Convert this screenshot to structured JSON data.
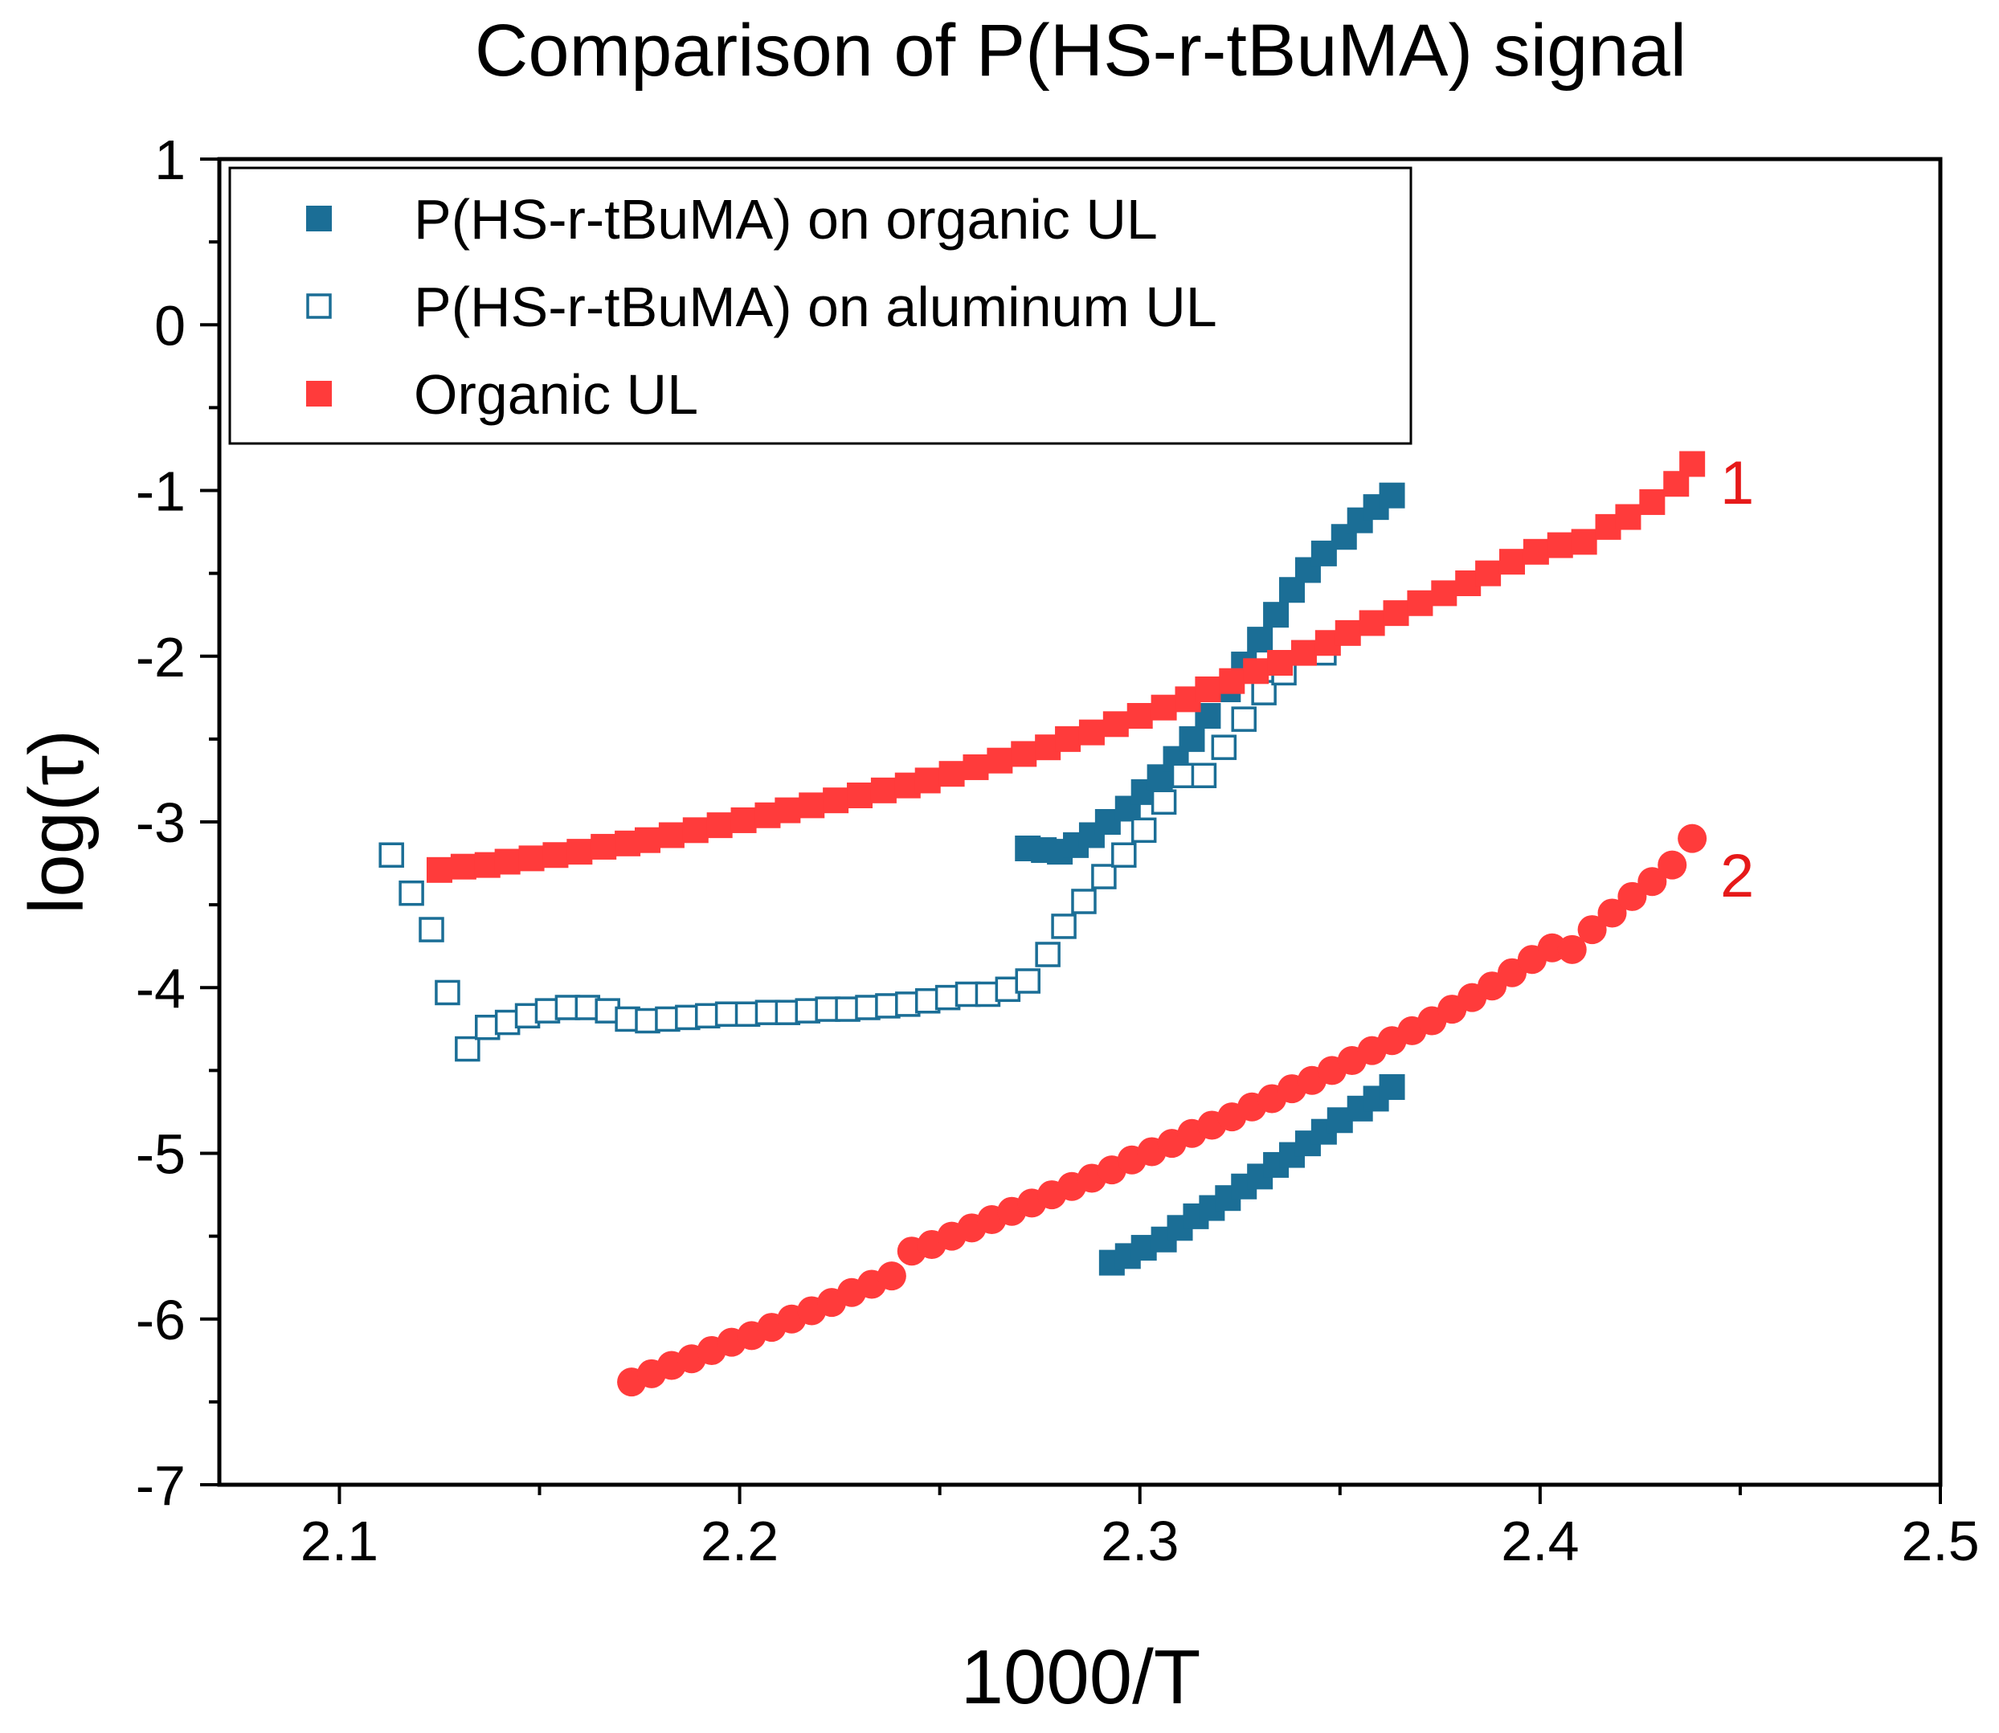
{
  "chart_data": {
    "type": "scatter",
    "title": "Comparison of P(HS-r-tBuMA) signal",
    "xlabel": "1000/T",
    "ylabel": "log(τ)",
    "xlim": [
      2.07,
      2.5
    ],
    "ylim": [
      -7,
      1
    ],
    "x_ticks": [
      2.1,
      2.2,
      2.3,
      2.4,
      2.5
    ],
    "x_tick_labels": [
      "2.1",
      "2.2",
      "2.3",
      "2.4",
      "2.5"
    ],
    "x_minor_step": 0.05,
    "y_ticks": [
      1,
      0,
      -1,
      -2,
      -3,
      -4,
      -5,
      -6,
      -7
    ],
    "y_tick_labels": [
      "1",
      "0",
      "-1",
      "-2",
      "-3",
      "-4",
      "-5",
      "-6",
      "-7"
    ],
    "y_minor_step": 0.5,
    "grid": false,
    "legend_position": "top-left",
    "legend": [
      {
        "label": "P(HS-r-tBuMA) on organic UL",
        "marker": "square-filled",
        "color": "#1b6e96"
      },
      {
        "label": "P(HS-r-tBuMA) on aluminum UL",
        "marker": "square-open",
        "color": "#1b6e96"
      },
      {
        "label": "Organic UL",
        "marker": "square-filled",
        "color": "#ff3b3b"
      }
    ],
    "annotations": [
      {
        "text": "1",
        "x": 2.445,
        "y": -1.08,
        "color": "#e61919"
      },
      {
        "text": "2",
        "x": 2.445,
        "y": -3.45,
        "color": "#e61919"
      }
    ],
    "series": [
      {
        "name": "P(HS-r-tBuMA) on organic UL — process 1",
        "marker": "square-filled",
        "color": "#1b6e96",
        "x": [
          2.272,
          2.276,
          2.28,
          2.284,
          2.288,
          2.292,
          2.297,
          2.301,
          2.305,
          2.309,
          2.313,
          2.317,
          2.322,
          2.326,
          2.33,
          2.334,
          2.338,
          2.342,
          2.346,
          2.351,
          2.355,
          2.359,
          2.363
        ],
        "y": [
          -3.16,
          -3.17,
          -3.18,
          -3.14,
          -3.08,
          -3.0,
          -2.92,
          -2.82,
          -2.73,
          -2.62,
          -2.5,
          -2.36,
          -2.2,
          -2.05,
          -1.9,
          -1.75,
          -1.6,
          -1.48,
          -1.38,
          -1.28,
          -1.18,
          -1.1,
          -1.03
        ]
      },
      {
        "name": "P(HS-r-tBuMA) on organic UL — process 2",
        "marker": "square-filled",
        "color": "#1b6e96",
        "x": [
          2.293,
          2.297,
          2.301,
          2.306,
          2.31,
          2.314,
          2.318,
          2.322,
          2.326,
          2.33,
          2.334,
          2.338,
          2.342,
          2.346,
          2.35,
          2.355,
          2.359,
          2.363
        ],
        "y": [
          -5.66,
          -5.62,
          -5.57,
          -5.52,
          -5.45,
          -5.38,
          -5.33,
          -5.27,
          -5.2,
          -5.14,
          -5.07,
          -5.01,
          -4.94,
          -4.87,
          -4.8,
          -4.73,
          -4.67,
          -4.6
        ]
      },
      {
        "name": "P(HS-r-tBuMA) on aluminum UL",
        "marker": "square-open",
        "color": "#1b6e96",
        "x": [
          2.113,
          2.118,
          2.123,
          2.127,
          2.132,
          2.137,
          2.142,
          2.147,
          2.152,
          2.157,
          2.162,
          2.167,
          2.172,
          2.177,
          2.182,
          2.187,
          2.192,
          2.197,
          2.202,
          2.207,
          2.212,
          2.217,
          2.222,
          2.227,
          2.232,
          2.237,
          2.242,
          2.247,
          2.252,
          2.257,
          2.262,
          2.267,
          2.272,
          2.277,
          2.281,
          2.286,
          2.291,
          2.296,
          2.301,
          2.306,
          2.311,
          2.316,
          2.321,
          2.326,
          2.331,
          2.336,
          2.341,
          2.346
        ],
        "y": [
          -3.2,
          -3.43,
          -3.65,
          -4.03,
          -4.37,
          -4.24,
          -4.21,
          -4.17,
          -4.14,
          -4.12,
          -4.12,
          -4.14,
          -4.19,
          -4.2,
          -4.19,
          -4.18,
          -4.17,
          -4.16,
          -4.16,
          -4.15,
          -4.15,
          -4.14,
          -4.13,
          -4.13,
          -4.12,
          -4.11,
          -4.1,
          -4.08,
          -4.06,
          -4.04,
          -4.04,
          -4.01,
          -3.96,
          -3.8,
          -3.63,
          -3.48,
          -3.33,
          -3.2,
          -3.05,
          -2.88,
          -2.72,
          -2.72,
          -2.55,
          -2.38,
          -2.22,
          -2.1,
          -1.98,
          -1.98
        ]
      },
      {
        "name": "Organic UL — process 1",
        "marker": "square-filled",
        "color": "#ff3b3b",
        "x": [
          2.125,
          2.131,
          2.137,
          2.142,
          2.148,
          2.154,
          2.16,
          2.166,
          2.172,
          2.177,
          2.183,
          2.189,
          2.195,
          2.201,
          2.207,
          2.212,
          2.218,
          2.224,
          2.23,
          2.236,
          2.242,
          2.247,
          2.253,
          2.259,
          2.265,
          2.271,
          2.277,
          2.282,
          2.288,
          2.294,
          2.3,
          2.306,
          2.312,
          2.317,
          2.323,
          2.329,
          2.335,
          2.341,
          2.347,
          2.352,
          2.358,
          2.364,
          2.37,
          2.376,
          2.382,
          2.387,
          2.393,
          2.399,
          2.405,
          2.411,
          2.417,
          2.422,
          2.428,
          2.434,
          2.438
        ],
        "y": [
          -3.29,
          -3.27,
          -3.26,
          -3.24,
          -3.22,
          -3.2,
          -3.18,
          -3.15,
          -3.13,
          -3.11,
          -3.08,
          -3.05,
          -3.02,
          -2.99,
          -2.96,
          -2.93,
          -2.9,
          -2.87,
          -2.84,
          -2.81,
          -2.78,
          -2.75,
          -2.71,
          -2.67,
          -2.63,
          -2.59,
          -2.55,
          -2.5,
          -2.46,
          -2.41,
          -2.36,
          -2.31,
          -2.26,
          -2.2,
          -2.15,
          -2.09,
          -2.04,
          -1.98,
          -1.92,
          -1.86,
          -1.8,
          -1.74,
          -1.68,
          -1.62,
          -1.56,
          -1.5,
          -1.43,
          -1.37,
          -1.33,
          -1.31,
          -1.22,
          -1.16,
          -1.07,
          -0.96,
          -0.84
        ]
      },
      {
        "name": "Organic UL — process 2",
        "marker": "circle-filled",
        "color": "#ff3b3b",
        "x": [
          2.173,
          2.178,
          2.183,
          2.188,
          2.193,
          2.198,
          2.203,
          2.208,
          2.213,
          2.218,
          2.223,
          2.228,
          2.233,
          2.238,
          2.243,
          2.248,
          2.253,
          2.258,
          2.263,
          2.268,
          2.273,
          2.278,
          2.283,
          2.288,
          2.293,
          2.298,
          2.303,
          2.308,
          2.313,
          2.318,
          2.323,
          2.328,
          2.333,
          2.338,
          2.343,
          2.348,
          2.353,
          2.358,
          2.363,
          2.368,
          2.373,
          2.378,
          2.383,
          2.388,
          2.393,
          2.398,
          2.403,
          2.408,
          2.413,
          2.418,
          2.423,
          2.428,
          2.433,
          2.438
        ],
        "y": [
          -6.38,
          -6.33,
          -6.28,
          -6.24,
          -6.19,
          -6.14,
          -6.1,
          -6.05,
          -6.0,
          -5.95,
          -5.9,
          -5.84,
          -5.79,
          -5.74,
          -5.59,
          -5.55,
          -5.5,
          -5.45,
          -5.4,
          -5.35,
          -5.3,
          -5.25,
          -5.2,
          -5.15,
          -5.1,
          -5.04,
          -4.99,
          -4.94,
          -4.88,
          -4.83,
          -4.78,
          -4.72,
          -4.67,
          -4.61,
          -4.56,
          -4.5,
          -4.44,
          -4.38,
          -4.32,
          -4.26,
          -4.2,
          -4.13,
          -4.06,
          -3.99,
          -3.91,
          -3.83,
          -3.76,
          -3.77,
          -3.65,
          -3.55,
          -3.45,
          -3.36,
          -3.26,
          -3.1
        ]
      }
    ]
  }
}
